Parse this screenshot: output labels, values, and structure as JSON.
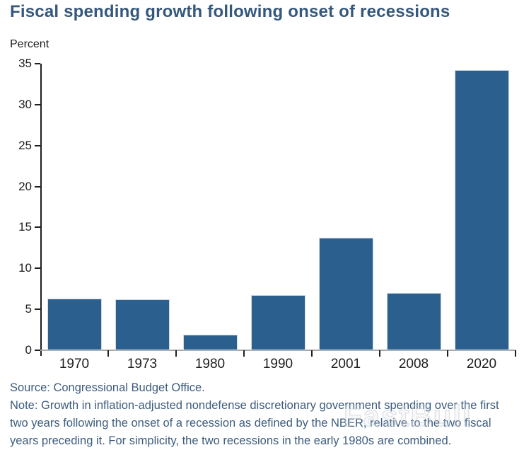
{
  "title": {
    "text": "Fiscal spending growth following onset of recessions"
  },
  "chart_data": {
    "type": "bar",
    "title": "Fiscal spending growth following onset of recessions",
    "xlabel": "",
    "ylabel": "Percent",
    "categories": [
      "1970",
      "1973",
      "1980",
      "1990",
      "2001",
      "2008",
      "2020"
    ],
    "values": [
      6.3,
      6.2,
      1.9,
      6.7,
      13.7,
      7.0,
      34.2
    ],
    "ylim": [
      0,
      35
    ],
    "ytick_step": 5,
    "ytick_labels": [
      "0",
      "5",
      "10",
      "15",
      "20",
      "25",
      "30",
      "35"
    ],
    "grid": false,
    "legend_position": "none"
  },
  "footer": {
    "source": "Source: Congressional Budget Office.",
    "note": "Note: Growth in inflation-adjusted nondefense discretionary government spending over the first two years following the onset of a recession as defined by the NBER, relative to the two fiscal years preceding it. For simplicity, the two recessions in the early 1980s are combined."
  },
  "watermark": {
    "text": "FastBull"
  },
  "colors": {
    "title": "#35587c",
    "bar": "#2b608e",
    "bar_border": "#cfdae6",
    "axis": "#1f1f1f",
    "baseline": "#a9a9a9",
    "tick_label": "#1d1d1d",
    "unit_label": "#1d1d1d",
    "footer": "#3d5c7e",
    "watermark": "#c9cfd8"
  }
}
